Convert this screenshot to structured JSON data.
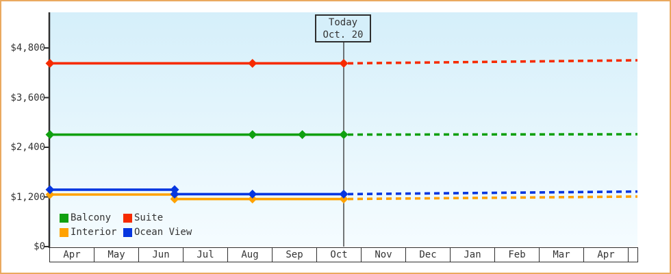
{
  "window": {
    "border_color": "#eaa95f",
    "background": "#ffffff"
  },
  "chart_data": {
    "type": "line",
    "title": "",
    "x_axis": {
      "labels": [
        "Apr",
        "May",
        "Jun",
        "Jul",
        "Aug",
        "Sep",
        "Oct",
        "Nov",
        "Dec",
        "Jan",
        "Feb",
        "Mar",
        "Apr"
      ],
      "months_total": 13.2
    },
    "y_axis": {
      "tick_labels": [
        "$0",
        "$1,200",
        "$2,400",
        "$3,600",
        "$4,800"
      ],
      "tick_values": [
        0,
        1200,
        2400,
        3600,
        4800
      ],
      "ylim": [
        0,
        5650
      ]
    },
    "today_marker": {
      "line1": "Today",
      "line2": "Oct. 20",
      "month_position": 6.6
    },
    "plot_colors": {
      "bg_top": "#d5effa",
      "bg_bottom": "#f5fcff",
      "axis": "#2e2e2e",
      "text": "#333333"
    },
    "series": [
      {
        "name": "Interior",
        "color": "#ffa200",
        "points": [
          {
            "m": 0,
            "value": 1258
          },
          {
            "m": 2.8,
            "value": 1258
          },
          {
            "m": 2.8,
            "value": 1150
          },
          {
            "m": 4.55,
            "value": 1150
          },
          {
            "m": 6.6,
            "value": 1150
          }
        ],
        "forecast": {
          "m_end": 13.2,
          "value_end": 1210
        }
      },
      {
        "name": "Ocean View",
        "color": "#0636e0",
        "points": [
          {
            "m": 0,
            "value": 1375
          },
          {
            "m": 2.8,
            "value": 1375
          },
          {
            "m": 2.8,
            "value": 1268
          },
          {
            "m": 4.55,
            "value": 1268
          },
          {
            "m": 6.6,
            "value": 1268
          }
        ],
        "forecast": {
          "m_end": 13.2,
          "value_end": 1330
        }
      },
      {
        "name": "Balcony",
        "color": "#10a010",
        "points": [
          {
            "m": 0,
            "value": 2706
          },
          {
            "m": 4.55,
            "value": 2706
          },
          {
            "m": 5.67,
            "value": 2706
          },
          {
            "m": 6.6,
            "value": 2706
          }
        ],
        "forecast": {
          "m_end": 13.2,
          "value_end": 2715
        }
      },
      {
        "name": "Suite",
        "color": "#f62b00",
        "points": [
          {
            "m": 0,
            "value": 4428
          },
          {
            "m": 4.55,
            "value": 4428
          },
          {
            "m": 6.6,
            "value": 4428
          }
        ],
        "forecast": {
          "m_end": 13.2,
          "value_end": 4502
        }
      }
    ],
    "legend": {
      "position": "bottom-left",
      "items": [
        {
          "label": "Balcony",
          "color": "#10a010"
        },
        {
          "label": "Suite",
          "color": "#f62b00"
        },
        {
          "label": "Interior",
          "color": "#ffa200"
        },
        {
          "label": "Ocean View",
          "color": "#0636e0"
        }
      ]
    }
  }
}
